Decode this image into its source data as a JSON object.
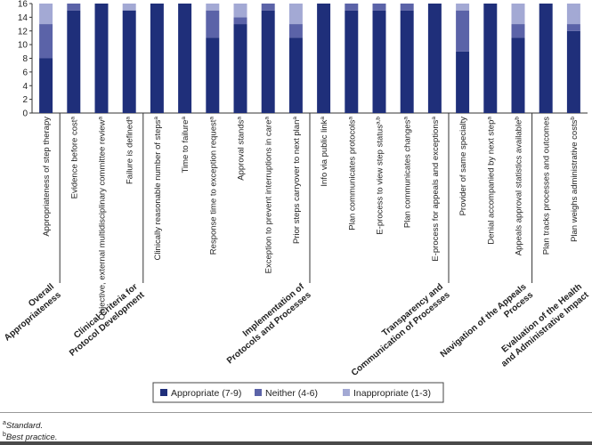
{
  "chart_data": {
    "type": "bar",
    "stacked": true,
    "ylim": [
      0,
      16
    ],
    "yticks": [
      0,
      2,
      4,
      6,
      8,
      10,
      12,
      14,
      16
    ],
    "grid": false,
    "legend_position": "bottom",
    "categories": [
      "Appropriateness of step therapy",
      "Evidence before cost",
      "Objective, external multidisciplinary committee review",
      "Failure is defined",
      "Clinically reasonable number of steps",
      "Time to failure",
      "Response time to exception request",
      "Approval stands",
      "Exception to prevent interruptions in care",
      "Prior steps carryover to next plan",
      "Info via public link",
      "Plan communicates protocols",
      "E-process to view step status",
      "Plan communicates changes",
      "E-process for appeals and exceptions",
      "Provider of same specialty",
      "Denial accompanied by next step",
      "Appeals approval statistics available",
      "Plan tracks processes and outcomes",
      "Plan weighs administrative costs"
    ],
    "category_superscripts": [
      "",
      "a",
      "a",
      "a",
      "a",
      "a",
      "a",
      "a",
      "a",
      "a",
      "a",
      "a",
      "a,b",
      "a",
      "a",
      "",
      "a",
      "b",
      "",
      "b"
    ],
    "groups": [
      {
        "label": "Overall Appropriateness",
        "categories": [
          "Appropriateness of step therapy"
        ]
      },
      {
        "label": "Clinical Criteria for Protocol Development",
        "categories": [
          "Evidence before cost",
          "Objective, external multidisciplinary committee review",
          "Failure is defined"
        ]
      },
      {
        "label": "Implementation of Protocols and Processes",
        "categories": [
          "Clinically reasonable number of steps",
          "Time to failure",
          "Response time to exception request",
          "Approval stands",
          "Exception to prevent interruptions in care",
          "Prior steps carryover to next plan"
        ]
      },
      {
        "label": "Transparency and Communication of Processes",
        "categories": [
          "Info via public link",
          "Plan communicates protocols",
          "E-process to view step status",
          "Plan communicates changes",
          "E-process for appeals and exceptions"
        ]
      },
      {
        "label": "Navigation of the Appeals Process",
        "categories": [
          "Provider of same specialty",
          "Denial accompanied by next step",
          "Appeals approval statistics available"
        ]
      },
      {
        "label": "Evaluation of the Health and Administrative Impact",
        "categories": [
          "Plan tracks processes and outcomes",
          "Plan weighs administrative costs"
        ]
      }
    ],
    "series": [
      {
        "name": "Appropriate (7-9)",
        "color": "#1f2f7a",
        "values": [
          8,
          15,
          16,
          15,
          16,
          16,
          11,
          13,
          15,
          11,
          16,
          15,
          15,
          15,
          16,
          9,
          16,
          11,
          16,
          12
        ]
      },
      {
        "name": "Neither (4-6)",
        "color": "#5b63a8",
        "values": [
          5,
          1,
          0,
          0,
          0,
          0,
          4,
          1,
          1,
          2,
          0,
          1,
          1,
          1,
          0,
          6,
          0,
          2,
          0,
          1
        ]
      },
      {
        "name": "Inappropriate (1-3)",
        "color": "#a3a9d4",
        "values": [
          3,
          0,
          0,
          1,
          0,
          0,
          1,
          2,
          0,
          3,
          0,
          0,
          0,
          0,
          0,
          1,
          0,
          3,
          0,
          3
        ]
      }
    ]
  },
  "footnotes": {
    "a_marker": "a",
    "a_text": "Standard.",
    "b_marker": "b",
    "b_text": "Best practice."
  }
}
